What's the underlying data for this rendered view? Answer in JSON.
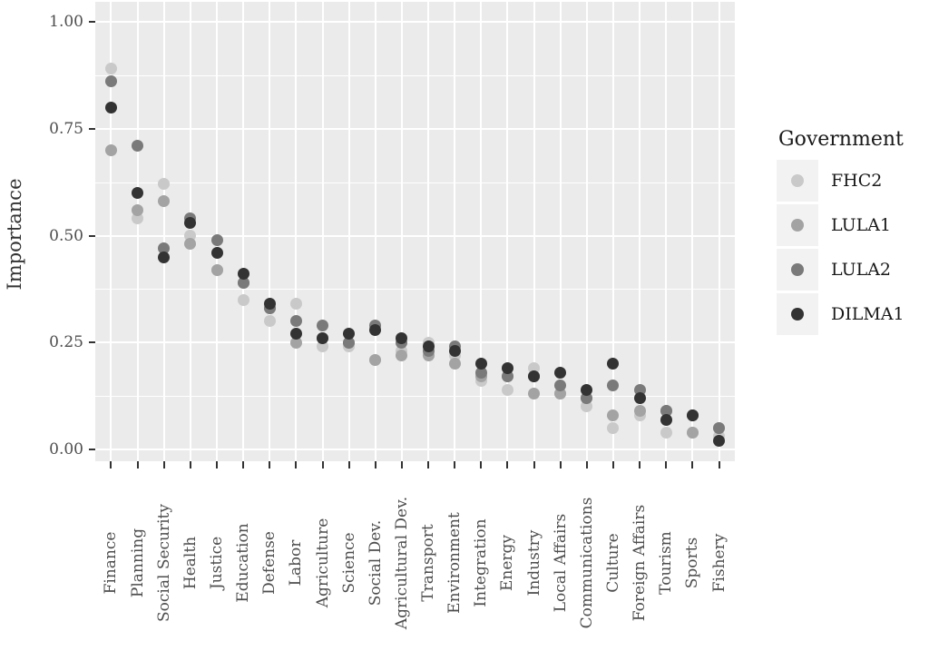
{
  "chart_data": {
    "type": "scatter",
    "title": "",
    "xlabel": "",
    "ylabel": "Importance",
    "ylim": [
      0,
      1
    ],
    "grid": "on",
    "panel_bg": "#ebebeb",
    "gridline_color": "#ffffff",
    "legend": {
      "title": "Government",
      "position": "right"
    },
    "y_ticks": [
      {
        "label": "1.00",
        "value": 1.0
      },
      {
        "label": "0.75",
        "value": 0.75
      },
      {
        "label": "0.50",
        "value": 0.5
      },
      {
        "label": "0.25",
        "value": 0.25
      },
      {
        "label": "0.00",
        "value": 0.0
      }
    ],
    "y_minor_gridlines": [
      0.875,
      0.625,
      0.375,
      0.125
    ],
    "categories": [
      "Finance",
      "Planning",
      "Social Security",
      "Health",
      "Justice",
      "Education",
      "Defense",
      "Labor",
      "Agriculture",
      "Science",
      "Social Dev.",
      "Agricultural Dev.",
      "Transport",
      "Environment",
      "Integration",
      "Energy",
      "Industry",
      "Local Affairs",
      "Communications",
      "Culture",
      "Foreign Affairs",
      "Tourism",
      "Sports",
      "Fishery"
    ],
    "series": [
      {
        "name": "FHC2",
        "color": "#c9c9c9",
        "values": [
          0.89,
          0.54,
          0.62,
          0.5,
          0.42,
          0.35,
          0.3,
          0.34,
          0.24,
          0.24,
          0.21,
          0.23,
          0.25,
          0.22,
          0.16,
          0.14,
          0.19,
          0.13,
          0.1,
          0.05,
          0.08,
          0.04,
          0.04,
          0.03
        ]
      },
      {
        "name": "LULA1",
        "color": "#a3a3a3",
        "values": [
          0.7,
          0.56,
          0.58,
          0.48,
          0.42,
          0.39,
          0.33,
          0.25,
          0.26,
          0.25,
          0.21,
          0.22,
          0.22,
          0.2,
          0.17,
          0.17,
          0.13,
          0.13,
          0.12,
          0.08,
          0.09,
          0.09,
          0.04,
          0.05
        ]
      },
      {
        "name": "LULA2",
        "color": "#7a7a7a",
        "values": [
          0.86,
          0.71,
          0.47,
          0.54,
          0.49,
          0.39,
          0.33,
          0.3,
          0.29,
          0.25,
          0.29,
          0.25,
          0.23,
          0.24,
          0.18,
          0.17,
          0.17,
          0.15,
          0.12,
          0.15,
          0.14,
          0.09,
          0.08,
          0.05
        ]
      },
      {
        "name": "DILMA1",
        "color": "#333333",
        "values": [
          0.8,
          0.6,
          0.45,
          0.53,
          0.46,
          0.41,
          0.34,
          0.27,
          0.26,
          0.27,
          0.28,
          0.26,
          0.24,
          0.23,
          0.2,
          0.19,
          0.17,
          0.18,
          0.14,
          0.2,
          0.12,
          0.07,
          0.08,
          0.02
        ]
      }
    ]
  }
}
